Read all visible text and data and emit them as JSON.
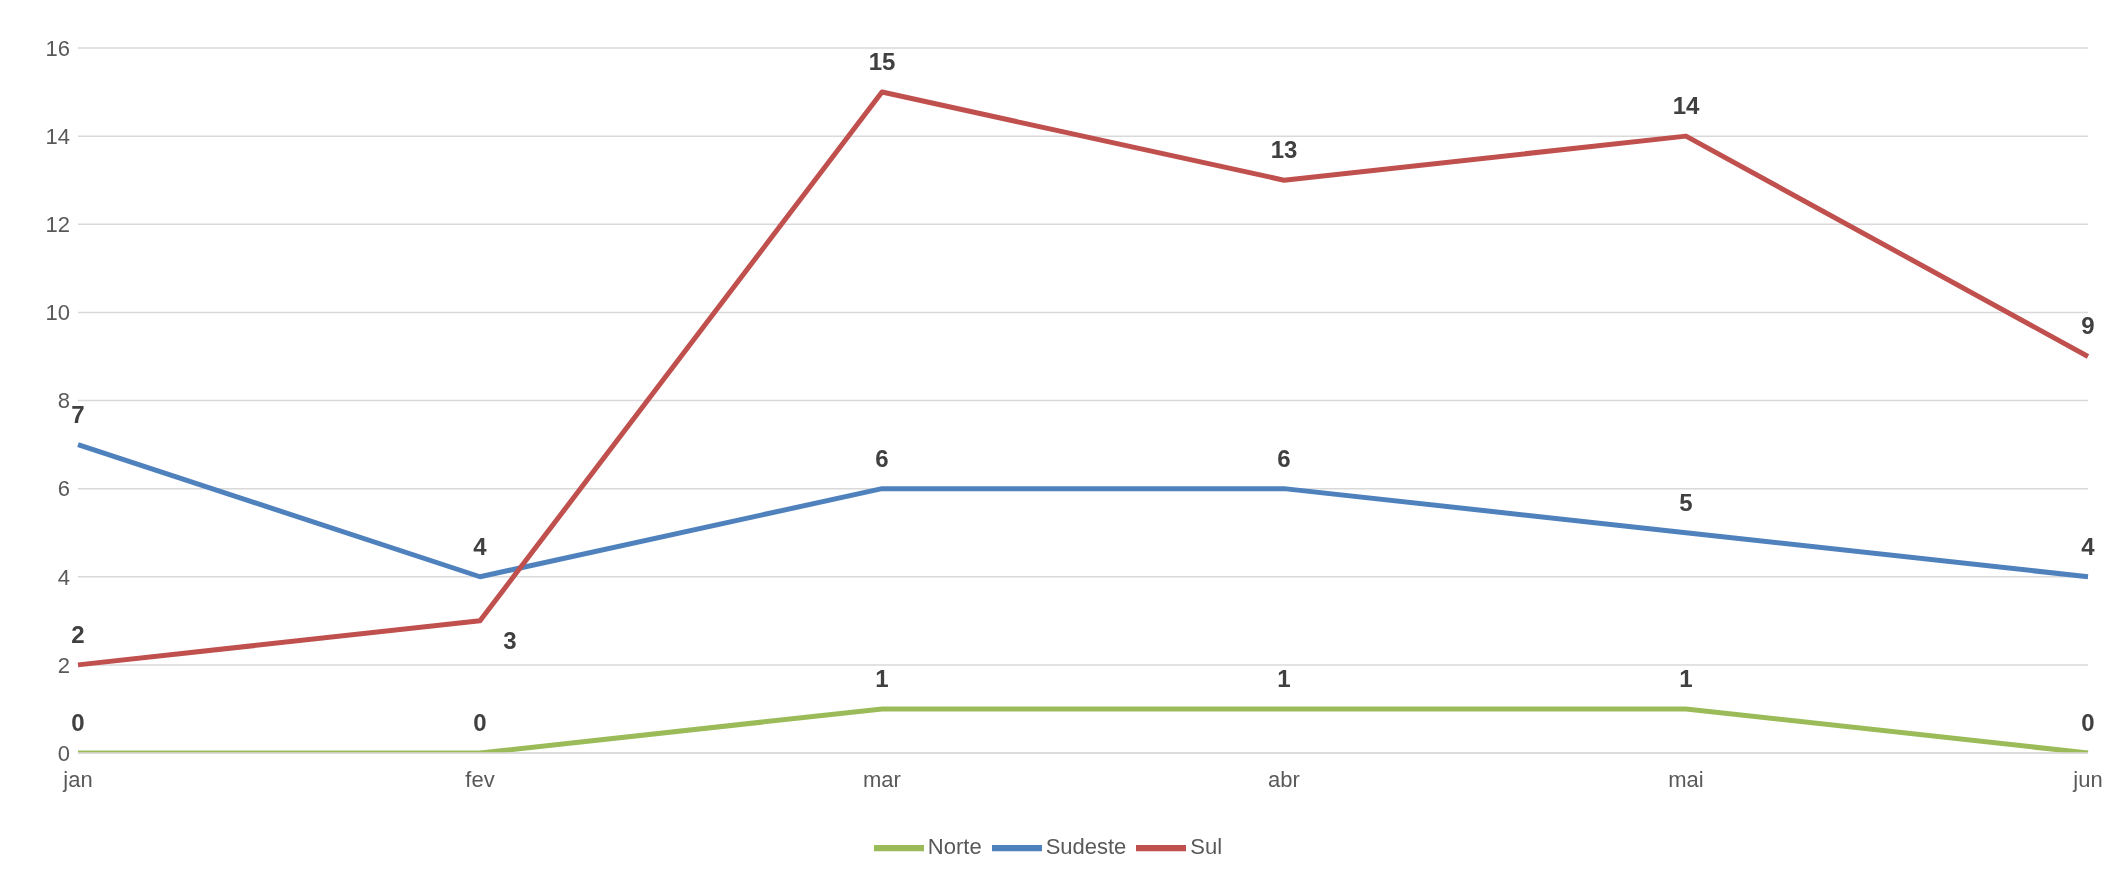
{
  "chart_data": {
    "type": "line",
    "categories": [
      "jan",
      "fev",
      "mar",
      "abr",
      "mai",
      "jun"
    ],
    "series": [
      {
        "name": "Sudeste",
        "color": "#4f81bd",
        "values": [
          7,
          4,
          6,
          6,
          5,
          4
        ]
      },
      {
        "name": "Sul",
        "color": "#c0504d",
        "values": [
          2,
          3,
          15,
          13,
          14,
          9
        ]
      },
      {
        "name": "Norte",
        "color": "#9bbb59",
        "values": [
          0,
          0,
          1,
          1,
          1,
          0
        ]
      }
    ],
    "ylim": [
      0,
      16
    ],
    "yticks": [
      0,
      2,
      4,
      6,
      8,
      10,
      12,
      14,
      16
    ],
    "grid": "y",
    "legend": "bottom",
    "marker": "none",
    "line_style": "solid",
    "data_labels": true
  }
}
